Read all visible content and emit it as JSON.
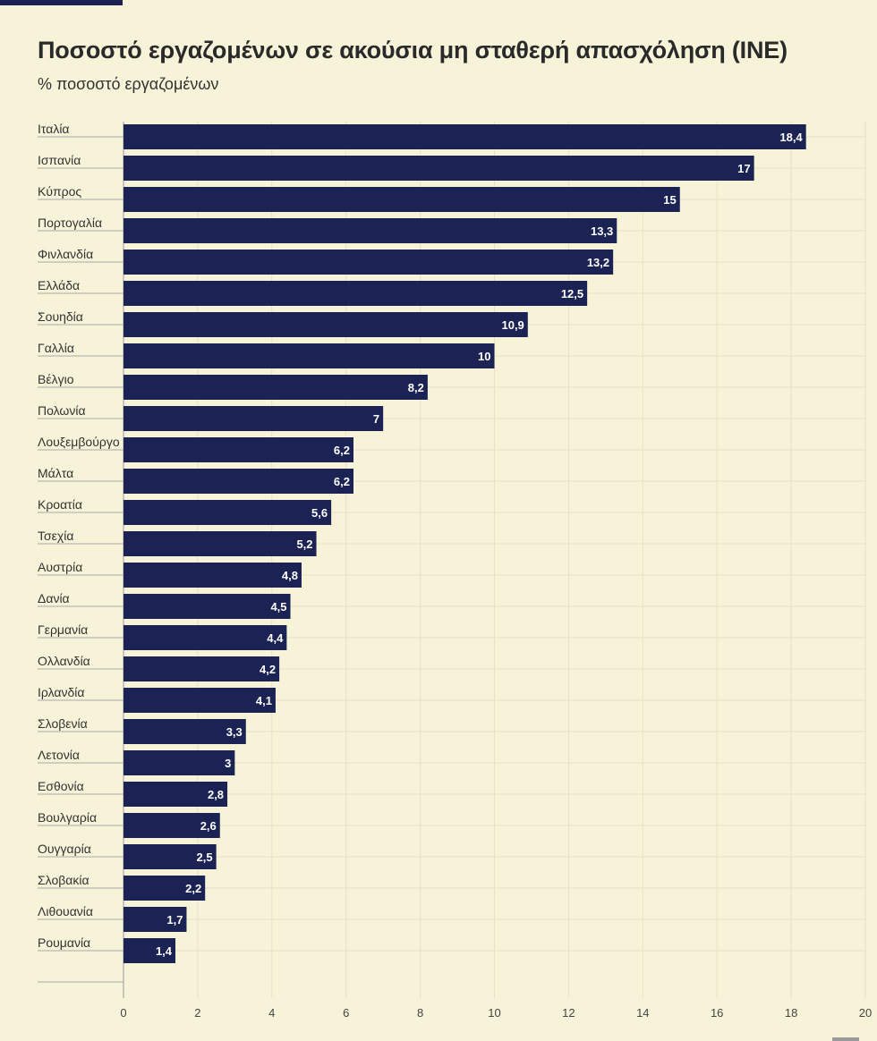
{
  "header": {
    "title": "Ποσοστό εργαζομένων σε ακούσια μη σταθερή απασχόληση (INE)",
    "subtitle": "% ποσοστό εργαζομένων"
  },
  "colors": {
    "bar": "#1b2355",
    "background": "#f6f3d8",
    "gridline": "#e6e2c6",
    "separator": "#a8a8a8"
  },
  "chart_data": {
    "type": "bar",
    "orientation": "horizontal",
    "title": "Ποσοστό εργαζομένων σε ακούσια μη σταθερή απασχόληση (INE)",
    "subtitle": "% ποσοστό εργαζομένων",
    "categories": [
      "Ιταλία",
      "Ισπανία",
      "Κύπρος",
      "Πορτογαλία",
      "Φινλανδία",
      "Ελλάδα",
      "Σουηδία",
      "Γαλλία",
      "Βέλγιο",
      "Πολωνία",
      "Λουξεμβούργο",
      "Μάλτα",
      "Κροατία",
      "Τσεχία",
      "Αυστρία",
      "Δανία",
      "Γερμανία",
      "Ολλανδία",
      "Ιρλανδία",
      "Σλοβενία",
      "Λετονία",
      "Εσθονία",
      "Βουλγαρία",
      "Ουγγαρία",
      "Σλοβακία",
      "Λιθουανία",
      "Ρουμανία"
    ],
    "values": [
      18.4,
      17,
      15,
      13.3,
      13.2,
      12.5,
      10.9,
      10,
      8.2,
      7,
      6.2,
      6.2,
      5.6,
      5.2,
      4.8,
      4.5,
      4.4,
      4.2,
      4.1,
      3.3,
      3,
      2.8,
      2.6,
      2.5,
      2.2,
      1.7,
      1.4
    ],
    "value_labels": [
      "18,4",
      "17",
      "15",
      "13,3",
      "13,2",
      "12,5",
      "10,9",
      "10",
      "8,2",
      "7",
      "6,2",
      "6,2",
      "5,6",
      "5,2",
      "4,8",
      "4,5",
      "4,4",
      "4,2",
      "4,1",
      "3,3",
      "3",
      "2,8",
      "2,6",
      "2,5",
      "2,2",
      "1,7",
      "1,4"
    ],
    "x_ticks": [
      0,
      2,
      4,
      6,
      8,
      10,
      12,
      14,
      16,
      18,
      20
    ],
    "xlim": [
      0,
      20
    ],
    "grid": true,
    "legend": "none"
  }
}
